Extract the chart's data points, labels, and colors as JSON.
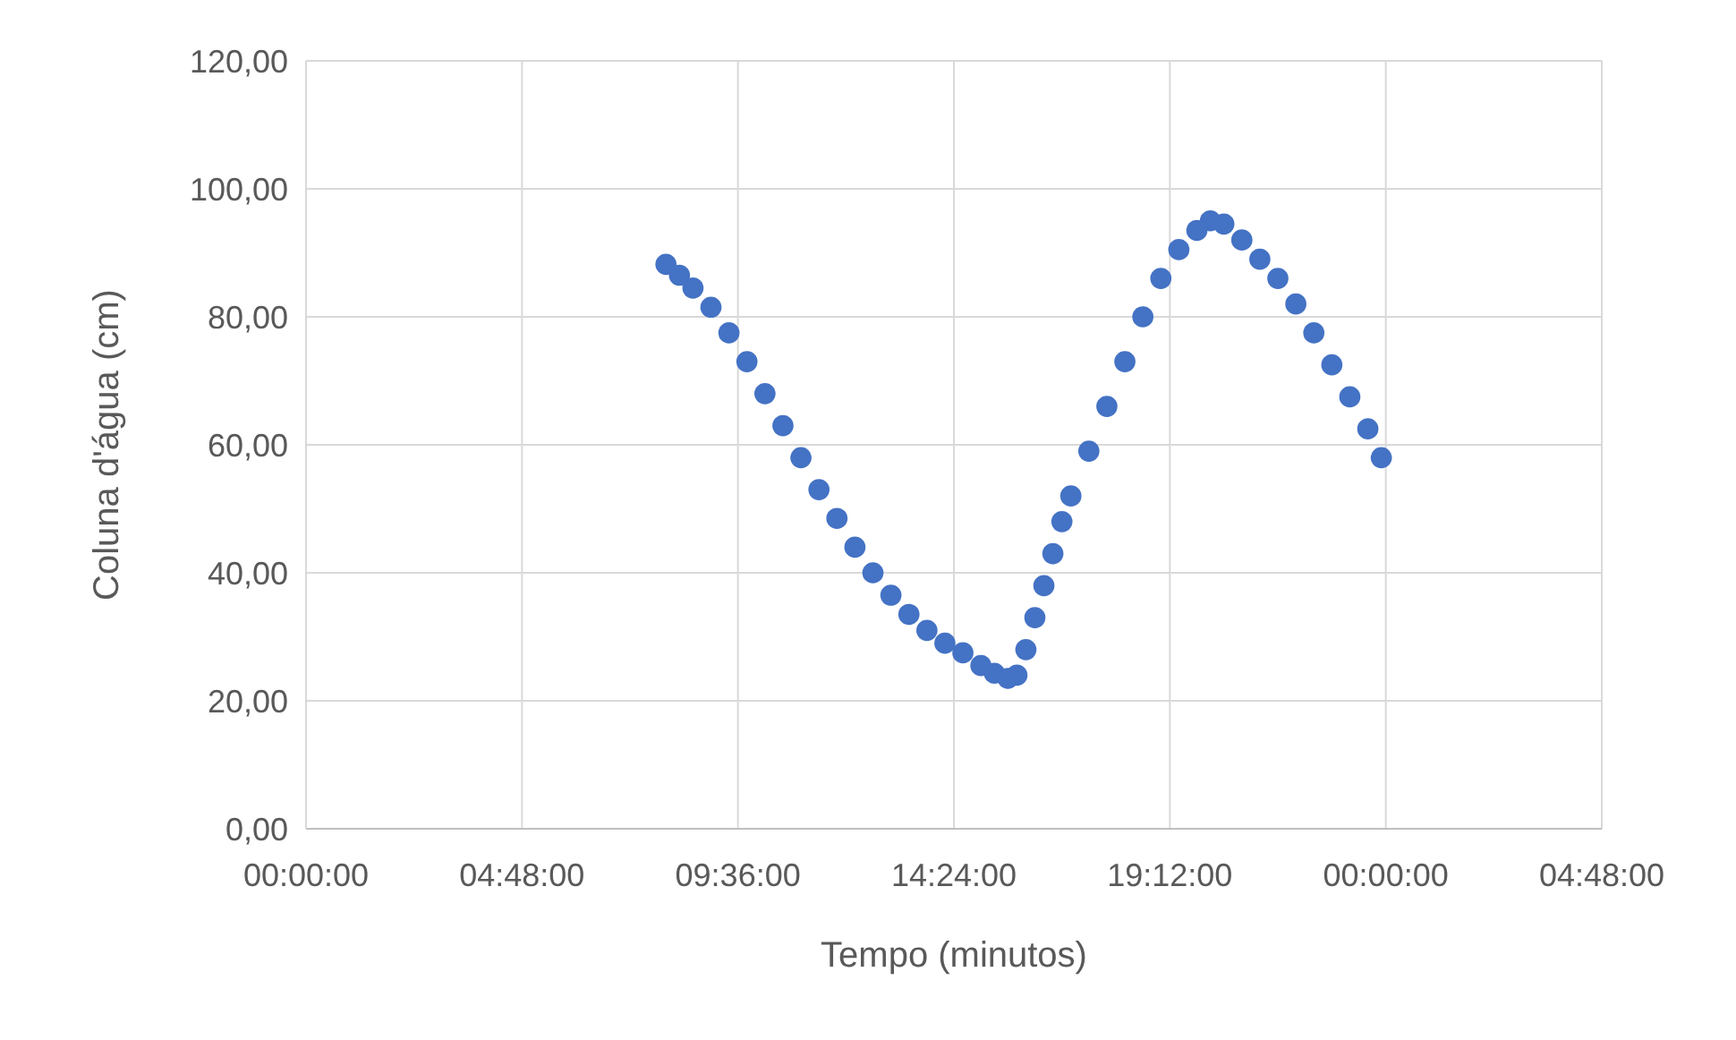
{
  "chart_data": {
    "type": "scatter",
    "xlabel": "Tempo (minutos)",
    "ylabel": "Coluna d'água (cm)",
    "x": [
      "1900-01-01T08:00",
      "1900-01-01T08:18",
      "1900-01-01T08:36",
      "1900-01-01T09:00",
      "1900-01-01T09:24",
      "1900-01-01T09:48",
      "1900-01-01T10:12",
      "1900-01-01T10:36",
      "1900-01-01T11:00",
      "1900-01-01T11:24",
      "1900-01-01T11:48",
      "1900-01-01T12:12",
      "1900-01-01T12:36",
      "1900-01-01T13:00",
      "1900-01-01T13:24",
      "1900-01-01T13:48",
      "1900-01-01T14:12",
      "1900-01-01T14:36",
      "1900-01-01T15:00",
      "1900-01-01T15:18",
      "1900-01-01T15:36",
      "1900-01-01T15:48",
      "1900-01-01T16:00",
      "1900-01-01T16:12",
      "1900-01-01T16:24",
      "1900-01-01T16:36",
      "1900-01-01T16:48",
      "1900-01-01T17:00",
      "1900-01-01T17:24",
      "1900-01-01T17:48",
      "1900-01-01T18:12",
      "1900-01-01T18:36",
      "1900-01-01T19:00",
      "1900-01-01T19:24",
      "1900-01-01T19:48",
      "1900-01-01T20:06",
      "1900-01-01T20:24",
      "1900-01-01T20:48",
      "1900-01-01T21:12",
      "1900-01-01T21:36",
      "1900-01-01T22:00",
      "1900-01-01T22:24",
      "1900-01-01T22:48",
      "1900-01-01T23:12",
      "1900-01-01T23:36",
      "1900-01-01T23:54"
    ],
    "series": [
      {
        "color": "#4472c4",
        "values": [
          88.2,
          86.5,
          84.5,
          81.5,
          77.5,
          73,
          68,
          63,
          58,
          53,
          48.5,
          44,
          40,
          36.5,
          33.5,
          31,
          29,
          27.5,
          25.5,
          24.3,
          23.5,
          24,
          28,
          33,
          38,
          43,
          48,
          52,
          59,
          66,
          73,
          80,
          86,
          90.5,
          93.5,
          95,
          94.5,
          92,
          89,
          86,
          82,
          77.5,
          72.5,
          67.5,
          62.5,
          58
        ]
      }
    ],
    "xlim": [
      "1900-01-01T00:00",
      "1900-01-02T04:48"
    ],
    "xticks": [
      {
        "value": "1900-01-01T00:00",
        "label": "00:00:00"
      },
      {
        "value": "1900-01-01T04:48",
        "label": "04:48:00"
      },
      {
        "value": "1900-01-01T09:36",
        "label": "09:36:00"
      },
      {
        "value": "1900-01-01T14:24",
        "label": "14:24:00"
      },
      {
        "value": "1900-01-01T19:12",
        "label": "19:12:00"
      },
      {
        "value": "1900-01-02T00:00",
        "label": "00:00:00"
      },
      {
        "value": "1900-01-02T04:48",
        "label": "04:48:00"
      }
    ],
    "ylim": [
      0,
      120
    ],
    "yticks": [
      {
        "value": 0,
        "label": "0,00"
      },
      {
        "value": 20,
        "label": "20,00"
      },
      {
        "value": 40,
        "label": "40,00"
      },
      {
        "value": 60,
        "label": "60,00"
      },
      {
        "value": 80,
        "label": "80,00"
      },
      {
        "value": 100,
        "label": "100,00"
      },
      {
        "value": 120,
        "label": "120,00"
      }
    ],
    "grid": true,
    "marker": "circle"
  }
}
